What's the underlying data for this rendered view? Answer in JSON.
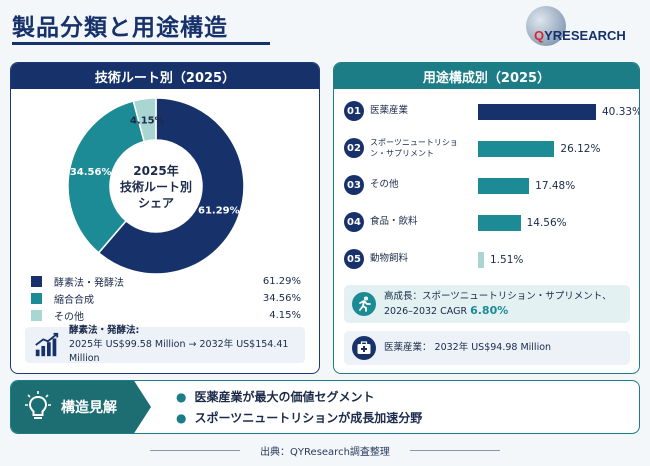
{
  "header": {
    "title": "製品分類と用途構造"
  },
  "logo": {
    "q": "Q",
    "rest": "YRESEARCH"
  },
  "left": {
    "title": "技術ルート別（2025）",
    "center_line1": "2025年",
    "center_line2": "技術ルート別",
    "center_line3": "シェア",
    "note_title": "酵素法・発酵法:",
    "note_body": "2025年 US$99.58 Million → 2032年 US$154.41 Million"
  },
  "right": {
    "title": "用途構成別（2025）",
    "callout1_line1": "高成長：スポーツニュートリション・サプリメント、",
    "callout1_prefix": "2026–2032 CAGR ",
    "callout1_value": "6.80%",
    "callout2": "医薬産業： 2032年 US$94.98 Million"
  },
  "insights": {
    "title": "構造見解",
    "items": [
      "医薬産業が最大の価値セグメント",
      "スポーツニュートリションが成長加速分野"
    ]
  },
  "source": "出典：QYResearch調査整理",
  "chart_data": [
    {
      "type": "pie",
      "title": "技術ルート別（2025）",
      "categories": [
        "酵素法・発酵法",
        "縮合合成",
        "その他"
      ],
      "values": [
        61.29,
        34.56,
        4.15
      ],
      "value_labels": [
        "61.29%",
        "34.56%",
        "4.15%"
      ],
      "colors": [
        "#17326b",
        "#1c8b95",
        "#a9d6d2"
      ]
    },
    {
      "type": "bar",
      "title": "用途構成別（2025）",
      "categories": [
        "医薬産業",
        "スポーツニュートリション・サプリメント",
        "その他",
        "食品・飲料",
        "動物飼料"
      ],
      "numbers": [
        "01",
        "02",
        "03",
        "04",
        "05"
      ],
      "values": [
        40.33,
        26.12,
        17.48,
        14.56,
        1.51
      ],
      "value_labels": [
        "40.33%",
        "26.12%",
        "17.48%",
        "14.56%",
        "1.51%"
      ],
      "colors": [
        "#17326b",
        "#1c8b95",
        "#1c8b95",
        "#1c8b95",
        "#a9d6d2"
      ]
    }
  ]
}
